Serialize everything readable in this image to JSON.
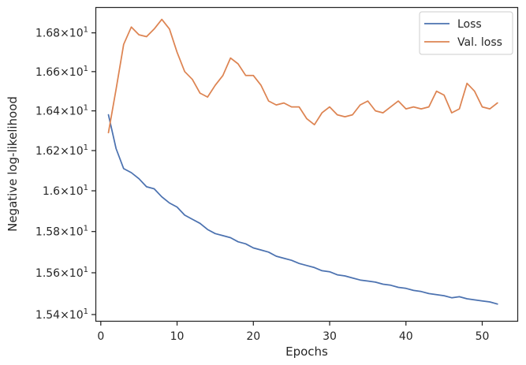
{
  "chart_data": {
    "type": "line",
    "title": "",
    "xlabel": "Epochs",
    "ylabel": "Negative log-likelihood",
    "xlim": [
      -0.6,
      54.6
    ],
    "ylim": [
      15.37,
      16.93
    ],
    "yscale": "log",
    "grid": false,
    "legend_position": "upper right",
    "x_ticks": [
      0,
      10,
      20,
      30,
      40,
      50
    ],
    "x_tick_labels": [
      "0",
      "10",
      "20",
      "30",
      "40",
      "50"
    ],
    "y_ticks": [
      15.4,
      15.6,
      15.8,
      16.0,
      16.2,
      16.4,
      16.6,
      16.8
    ],
    "y_tick_labels": [
      {
        "mant": "1.54",
        "exp": "1"
      },
      {
        "mant": "1.56",
        "exp": "1"
      },
      {
        "mant": "1.58",
        "exp": "1"
      },
      {
        "mant": "1.6",
        "exp": "1"
      },
      {
        "mant": "1.62",
        "exp": "1"
      },
      {
        "mant": "1.64",
        "exp": "1"
      },
      {
        "mant": "1.66",
        "exp": "1"
      },
      {
        "mant": "1.68",
        "exp": "1"
      }
    ],
    "x": [
      1,
      2,
      3,
      4,
      5,
      6,
      7,
      8,
      9,
      10,
      11,
      12,
      13,
      14,
      15,
      16,
      17,
      18,
      19,
      20,
      21,
      22,
      23,
      24,
      25,
      26,
      27,
      28,
      29,
      30,
      31,
      32,
      33,
      34,
      35,
      36,
      37,
      38,
      39,
      40,
      41,
      42,
      43,
      44,
      45,
      46,
      47,
      48,
      49,
      50,
      51,
      52
    ],
    "series": [
      {
        "name": "Loss",
        "color": "#4c72b0",
        "values": [
          16.38,
          16.21,
          16.11,
          16.09,
          16.06,
          16.02,
          16.01,
          15.97,
          15.94,
          15.92,
          15.88,
          15.86,
          15.84,
          15.81,
          15.79,
          15.78,
          15.77,
          15.75,
          15.74,
          15.72,
          15.71,
          15.7,
          15.68,
          15.67,
          15.66,
          15.645,
          15.635,
          15.625,
          15.61,
          15.605,
          15.59,
          15.585,
          15.575,
          15.565,
          15.56,
          15.555,
          15.545,
          15.54,
          15.53,
          15.525,
          15.515,
          15.51,
          15.5,
          15.495,
          15.49,
          15.48,
          15.485,
          15.475,
          15.47,
          15.465,
          15.46,
          15.45
        ]
      },
      {
        "name": "Val. loss",
        "color": "#dd8452",
        "values": [
          16.29,
          16.51,
          16.74,
          16.83,
          16.79,
          16.78,
          16.82,
          16.87,
          16.82,
          16.7,
          16.6,
          16.56,
          16.49,
          16.47,
          16.53,
          16.58,
          16.67,
          16.64,
          16.58,
          16.58,
          16.53,
          16.45,
          16.43,
          16.44,
          16.42,
          16.42,
          16.36,
          16.33,
          16.39,
          16.42,
          16.38,
          16.37,
          16.38,
          16.43,
          16.45,
          16.4,
          16.39,
          16.42,
          16.45,
          16.41,
          16.42,
          16.41,
          16.42,
          16.5,
          16.48,
          16.39,
          16.41,
          16.54,
          16.5,
          16.42,
          16.41,
          16.44
        ]
      }
    ]
  }
}
